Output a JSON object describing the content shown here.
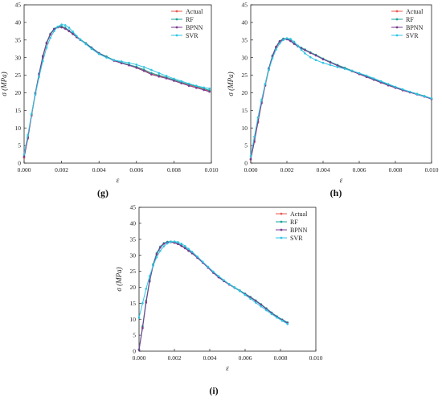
{
  "colors": {
    "Actual": "#e8584f",
    "RF": "#1aa39a",
    "BPNN": "#7a3b8f",
    "SVR": "#2ec4e4",
    "axis": "#222222"
  },
  "chart_data": [
    {
      "type": "line",
      "panel_label": "(g)",
      "xlabel": "ε",
      "ylabel": "σ (MPa)",
      "xlim": [
        0.0,
        0.01
      ],
      "ylim": [
        0,
        45
      ],
      "xticks": [
        "0.000",
        "0.002",
        "0.004",
        "0.006",
        "0.008",
        "0.010"
      ],
      "yticks": [
        "0",
        "5",
        "10",
        "15",
        "20",
        "25",
        "30",
        "35",
        "40",
        "45"
      ],
      "legend": "top-right",
      "series": [
        {
          "name": "Actual",
          "x": [
            0.0,
            0.0002,
            0.0004,
            0.0006,
            0.0008,
            0.001,
            0.0012,
            0.0014,
            0.0016,
            0.0018,
            0.002,
            0.0022,
            0.0024,
            0.0026,
            0.0028,
            0.003,
            0.0033,
            0.0036,
            0.004,
            0.0044,
            0.0048,
            0.0052,
            0.0056,
            0.006,
            0.0064,
            0.0068,
            0.0072,
            0.0076,
            0.008,
            0.0084,
            0.0088,
            0.0092,
            0.0096,
            0.0099
          ],
          "y": [
            1.5,
            7,
            13.5,
            19.5,
            25,
            30,
            34,
            36.5,
            38,
            38.7,
            38.8,
            38.4,
            37.6,
            36.8,
            35.9,
            35.1,
            34.0,
            32.8,
            31.2,
            30.2,
            29.2,
            28.5,
            27.9,
            27.3,
            26.4,
            25.4,
            24.8,
            24.2,
            23.5,
            22.8,
            22.2,
            21.6,
            21.0,
            20.5
          ]
        },
        {
          "name": "RF",
          "x": [
            0.0,
            0.0002,
            0.0004,
            0.0006,
            0.0008,
            0.001,
            0.0012,
            0.0014,
            0.0016,
            0.0018,
            0.002,
            0.0022,
            0.0024,
            0.0026,
            0.0028,
            0.003,
            0.0033,
            0.0036,
            0.004,
            0.0044,
            0.0048,
            0.0052,
            0.0056,
            0.006,
            0.0064,
            0.0068,
            0.0072,
            0.0076,
            0.008,
            0.0084,
            0.0088,
            0.0092,
            0.0096,
            0.0099
          ],
          "y": [
            2.0,
            7.5,
            14,
            20,
            25.5,
            30.5,
            34.3,
            36.8,
            38.2,
            38.8,
            38.9,
            38.5,
            37.7,
            36.9,
            36.0,
            35.2,
            34.1,
            32.9,
            31.3,
            30.3,
            29.3,
            28.6,
            28.0,
            27.4,
            26.6,
            25.6,
            25.0,
            24.4,
            23.7,
            23.0,
            22.4,
            21.8,
            21.2,
            20.7
          ]
        },
        {
          "name": "BPNN",
          "x": [
            0.0,
            0.0002,
            0.0004,
            0.0006,
            0.0008,
            0.001,
            0.0012,
            0.0014,
            0.0016,
            0.0018,
            0.002,
            0.0022,
            0.0024,
            0.0026,
            0.0028,
            0.003,
            0.0033,
            0.0036,
            0.004,
            0.0044,
            0.0048,
            0.0052,
            0.0056,
            0.006,
            0.0064,
            0.0068,
            0.0072,
            0.0076,
            0.008,
            0.0084,
            0.0088,
            0.0092,
            0.0096,
            0.0099
          ],
          "y": [
            1.8,
            7.2,
            13.8,
            19.8,
            25.3,
            30.3,
            34.1,
            36.6,
            38.1,
            38.6,
            38.6,
            38.2,
            37.5,
            36.7,
            35.8,
            35.0,
            33.9,
            32.7,
            31.2,
            30.1,
            29.1,
            28.4,
            27.8,
            27.1,
            26.2,
            25.2,
            24.6,
            24.1,
            23.4,
            22.7,
            22.0,
            21.4,
            20.8,
            20.3
          ]
        },
        {
          "name": "SVR",
          "x": [
            0.0,
            0.0002,
            0.0004,
            0.0006,
            0.0008,
            0.001,
            0.0012,
            0.0014,
            0.0016,
            0.0018,
            0.002,
            0.0022,
            0.0024,
            0.0026,
            0.0028,
            0.003,
            0.0033,
            0.0036,
            0.004,
            0.0044,
            0.0048,
            0.0052,
            0.0056,
            0.006,
            0.0064,
            0.0068,
            0.0072,
            0.0076,
            0.008,
            0.0084,
            0.0088,
            0.0092,
            0.0096,
            0.0099
          ],
          "y": [
            2.5,
            8,
            14,
            19.5,
            24.5,
            29,
            32.8,
            35.6,
            37.5,
            38.8,
            39.4,
            39.2,
            38.5,
            37.4,
            36.2,
            35.1,
            33.8,
            32.5,
            31.0,
            30.0,
            29.3,
            28.9,
            28.5,
            28.0,
            27.3,
            26.5,
            25.6,
            24.8,
            24.0,
            23.3,
            22.6,
            22.0,
            21.5,
            21.2
          ]
        }
      ]
    },
    {
      "type": "line",
      "panel_label": "(h)",
      "xlabel": "ε",
      "ylabel": "σ (MPa)",
      "xlim": [
        0.0,
        0.01
      ],
      "ylim": [
        0,
        45
      ],
      "xticks": [
        "0.000",
        "0.002",
        "0.004",
        "0.006",
        "0.008",
        "0.010"
      ],
      "yticks": [
        "0",
        "5",
        "10",
        "15",
        "20",
        "25",
        "30",
        "35",
        "40",
        "45"
      ],
      "legend": "top-right",
      "series": [
        {
          "name": "Actual",
          "x": [
            0.0,
            0.0002,
            0.0004,
            0.0006,
            0.0008,
            0.001,
            0.0012,
            0.0014,
            0.0016,
            0.0018,
            0.002,
            0.0022,
            0.0024,
            0.0026,
            0.0028,
            0.003,
            0.0033,
            0.0036,
            0.004,
            0.0044,
            0.0048,
            0.0052,
            0.0056,
            0.006,
            0.0064,
            0.0068,
            0.0072,
            0.0076,
            0.008,
            0.0084,
            0.0088,
            0.0092,
            0.0096,
            0.01
          ],
          "y": [
            1.0,
            6,
            11.5,
            17,
            22,
            26.5,
            30.2,
            32.8,
            34.5,
            35.2,
            35.3,
            34.8,
            34.0,
            33.3,
            32.7,
            32.2,
            31.4,
            30.7,
            29.6,
            28.7,
            27.8,
            27.0,
            26.2,
            25.4,
            24.6,
            23.8,
            23.0,
            22.2,
            21.5,
            20.8,
            20.2,
            19.6,
            19.0,
            18.3
          ]
        },
        {
          "name": "RF",
          "x": [
            0.0,
            0.0002,
            0.0004,
            0.0006,
            0.0008,
            0.001,
            0.0012,
            0.0014,
            0.0016,
            0.0018,
            0.002,
            0.0022,
            0.0024,
            0.0026,
            0.0028,
            0.003,
            0.0033,
            0.0036,
            0.004,
            0.0044,
            0.0048,
            0.0052,
            0.0056,
            0.006,
            0.0064,
            0.0068,
            0.0072,
            0.0076,
            0.008,
            0.0084,
            0.0088,
            0.0092,
            0.0096,
            0.01
          ],
          "y": [
            1.2,
            6.5,
            12,
            17.5,
            22.5,
            27,
            30.6,
            33.1,
            34.7,
            35.4,
            35.4,
            34.9,
            34.1,
            33.4,
            32.8,
            32.3,
            31.5,
            30.8,
            29.7,
            28.8,
            27.9,
            27.1,
            26.3,
            25.5,
            24.7,
            23.9,
            23.1,
            22.3,
            21.6,
            20.9,
            20.3,
            19.7,
            19.1,
            18.4
          ]
        },
        {
          "name": "BPNN",
          "x": [
            0.0,
            0.0002,
            0.0004,
            0.0006,
            0.0008,
            0.001,
            0.0012,
            0.0014,
            0.0016,
            0.0018,
            0.002,
            0.0022,
            0.0024,
            0.0026,
            0.0028,
            0.003,
            0.0033,
            0.0036,
            0.004,
            0.0044,
            0.0048,
            0.0052,
            0.0056,
            0.006,
            0.0064,
            0.0068,
            0.0072,
            0.0076,
            0.008,
            0.0084,
            0.0088,
            0.0092,
            0.0096,
            0.01
          ],
          "y": [
            1.1,
            6.2,
            11.8,
            17.2,
            22.2,
            26.8,
            30.4,
            33.0,
            34.6,
            35.2,
            35.2,
            34.7,
            33.9,
            33.2,
            32.6,
            32.1,
            31.3,
            30.6,
            29.5,
            28.6,
            27.7,
            26.9,
            26.1,
            25.3,
            24.5,
            23.7,
            22.9,
            22.1,
            21.4,
            20.7,
            20.1,
            19.5,
            18.9,
            18.2
          ]
        },
        {
          "name": "SVR",
          "x": [
            0.0,
            0.0002,
            0.0004,
            0.0006,
            0.0008,
            0.001,
            0.0012,
            0.0014,
            0.0016,
            0.0018,
            0.002,
            0.0022,
            0.0024,
            0.0026,
            0.0028,
            0.003,
            0.0033,
            0.0036,
            0.004,
            0.0044,
            0.0048,
            0.0052,
            0.0056,
            0.006,
            0.0064,
            0.0068,
            0.0072,
            0.0076,
            0.008,
            0.0084,
            0.0088,
            0.0092,
            0.0096,
            0.01
          ],
          "y": [
            2.0,
            7.5,
            13,
            18,
            22.5,
            26.5,
            29.8,
            32.3,
            34.0,
            35.0,
            35.5,
            35.3,
            34.5,
            33.4,
            32.2,
            31.2,
            30.1,
            29.3,
            28.5,
            27.9,
            27.3,
            26.8,
            26.2,
            25.6,
            24.9,
            24.1,
            23.3,
            22.5,
            21.7,
            21.0,
            20.3,
            19.6,
            19.0,
            18.4
          ]
        }
      ]
    },
    {
      "type": "line",
      "panel_label": "(i)",
      "xlabel": "ε",
      "ylabel": "σ (MPa)",
      "xlim": [
        0.0,
        0.01
      ],
      "ylim": [
        0,
        45
      ],
      "xticks": [
        "0.000",
        "0.002",
        "0.004",
        "0.006",
        "0.008",
        "0.010"
      ],
      "yticks": [
        "0",
        "5",
        "10",
        "15",
        "20",
        "25",
        "30",
        "35",
        "40",
        "45"
      ],
      "legend": "top-right",
      "series": [
        {
          "name": "Actual",
          "x": [
            0.0,
            0.0002,
            0.0004,
            0.0006,
            0.0008,
            0.001,
            0.0012,
            0.0014,
            0.0016,
            0.0018,
            0.002,
            0.0022,
            0.0024,
            0.0026,
            0.0028,
            0.003,
            0.0033,
            0.0036,
            0.0039,
            0.0042,
            0.0045,
            0.0048,
            0.0051,
            0.0054,
            0.0057,
            0.006,
            0.0063,
            0.0066,
            0.0069,
            0.0072,
            0.0075,
            0.0078,
            0.0081,
            0.0084
          ],
          "y": [
            0.5,
            7.5,
            15.5,
            22,
            27,
            30.5,
            32.5,
            33.7,
            34.1,
            34.2,
            34.0,
            33.6,
            33.0,
            32.3,
            31.5,
            30.7,
            29.3,
            27.8,
            26.2,
            24.6,
            23.2,
            22.0,
            20.9,
            19.9,
            18.9,
            17.9,
            16.9,
            15.8,
            14.6,
            13.3,
            12.0,
            10.8,
            9.8,
            8.9
          ]
        },
        {
          "name": "RF",
          "x": [
            0.0,
            0.0002,
            0.0004,
            0.0006,
            0.0008,
            0.001,
            0.0012,
            0.0014,
            0.0016,
            0.0018,
            0.002,
            0.0022,
            0.0024,
            0.0026,
            0.0028,
            0.003,
            0.0033,
            0.0036,
            0.0039,
            0.0042,
            0.0045,
            0.0048,
            0.0051,
            0.0054,
            0.0057,
            0.006,
            0.0063,
            0.0066,
            0.0069,
            0.0072,
            0.0075,
            0.0078,
            0.0081,
            0.0084
          ],
          "y": [
            0.6,
            7.8,
            15.8,
            22.3,
            27.2,
            30.7,
            32.7,
            33.8,
            34.2,
            34.3,
            34.1,
            33.7,
            33.1,
            32.4,
            31.6,
            30.8,
            29.4,
            27.9,
            26.3,
            24.7,
            23.3,
            22.1,
            21.0,
            20.0,
            19.0,
            18.0,
            17.0,
            15.9,
            14.7,
            13.4,
            12.1,
            10.9,
            9.9,
            9.0
          ]
        },
        {
          "name": "BPNN",
          "x": [
            0.0,
            0.0002,
            0.0004,
            0.0006,
            0.0008,
            0.001,
            0.0012,
            0.0014,
            0.0016,
            0.0018,
            0.002,
            0.0022,
            0.0024,
            0.0026,
            0.0028,
            0.003,
            0.0033,
            0.0036,
            0.0039,
            0.0042,
            0.0045,
            0.0048,
            0.0051,
            0.0054,
            0.0057,
            0.006,
            0.0063,
            0.0066,
            0.0069,
            0.0072,
            0.0075,
            0.0078,
            0.0081,
            0.0084
          ],
          "y": [
            0.4,
            7.2,
            15.2,
            21.8,
            26.8,
            30.3,
            32.4,
            33.6,
            34.0,
            34.1,
            33.9,
            33.5,
            32.9,
            32.2,
            31.4,
            30.6,
            29.2,
            27.7,
            26.1,
            24.5,
            23.1,
            21.9,
            20.8,
            19.8,
            18.8,
            17.8,
            16.8,
            15.7,
            14.5,
            13.2,
            11.9,
            10.7,
            9.7,
            8.8
          ]
        },
        {
          "name": "SVR",
          "x": [
            0.0,
            0.0002,
            0.0004,
            0.0006,
            0.0008,
            0.001,
            0.0012,
            0.0014,
            0.0016,
            0.0018,
            0.002,
            0.0022,
            0.0024,
            0.0026,
            0.0028,
            0.003,
            0.0033,
            0.0036,
            0.0039,
            0.0042,
            0.0045,
            0.0048,
            0.0051,
            0.0054,
            0.0057,
            0.006,
            0.0063,
            0.0066,
            0.0069,
            0.0072,
            0.0075,
            0.0078,
            0.0081,
            0.0084
          ],
          "y": [
            10.5,
            15.0,
            19.5,
            23.5,
            26.8,
            29.4,
            31.4,
            32.8,
            33.7,
            34.2,
            34.3,
            34.1,
            33.6,
            32.9,
            32.0,
            31.1,
            29.6,
            28.0,
            26.4,
            24.9,
            23.5,
            22.2,
            21.0,
            19.9,
            18.8,
            17.6,
            16.4,
            15.2,
            14.0,
            12.8,
            11.6,
            10.5,
            9.5,
            8.5
          ]
        }
      ]
    }
  ]
}
